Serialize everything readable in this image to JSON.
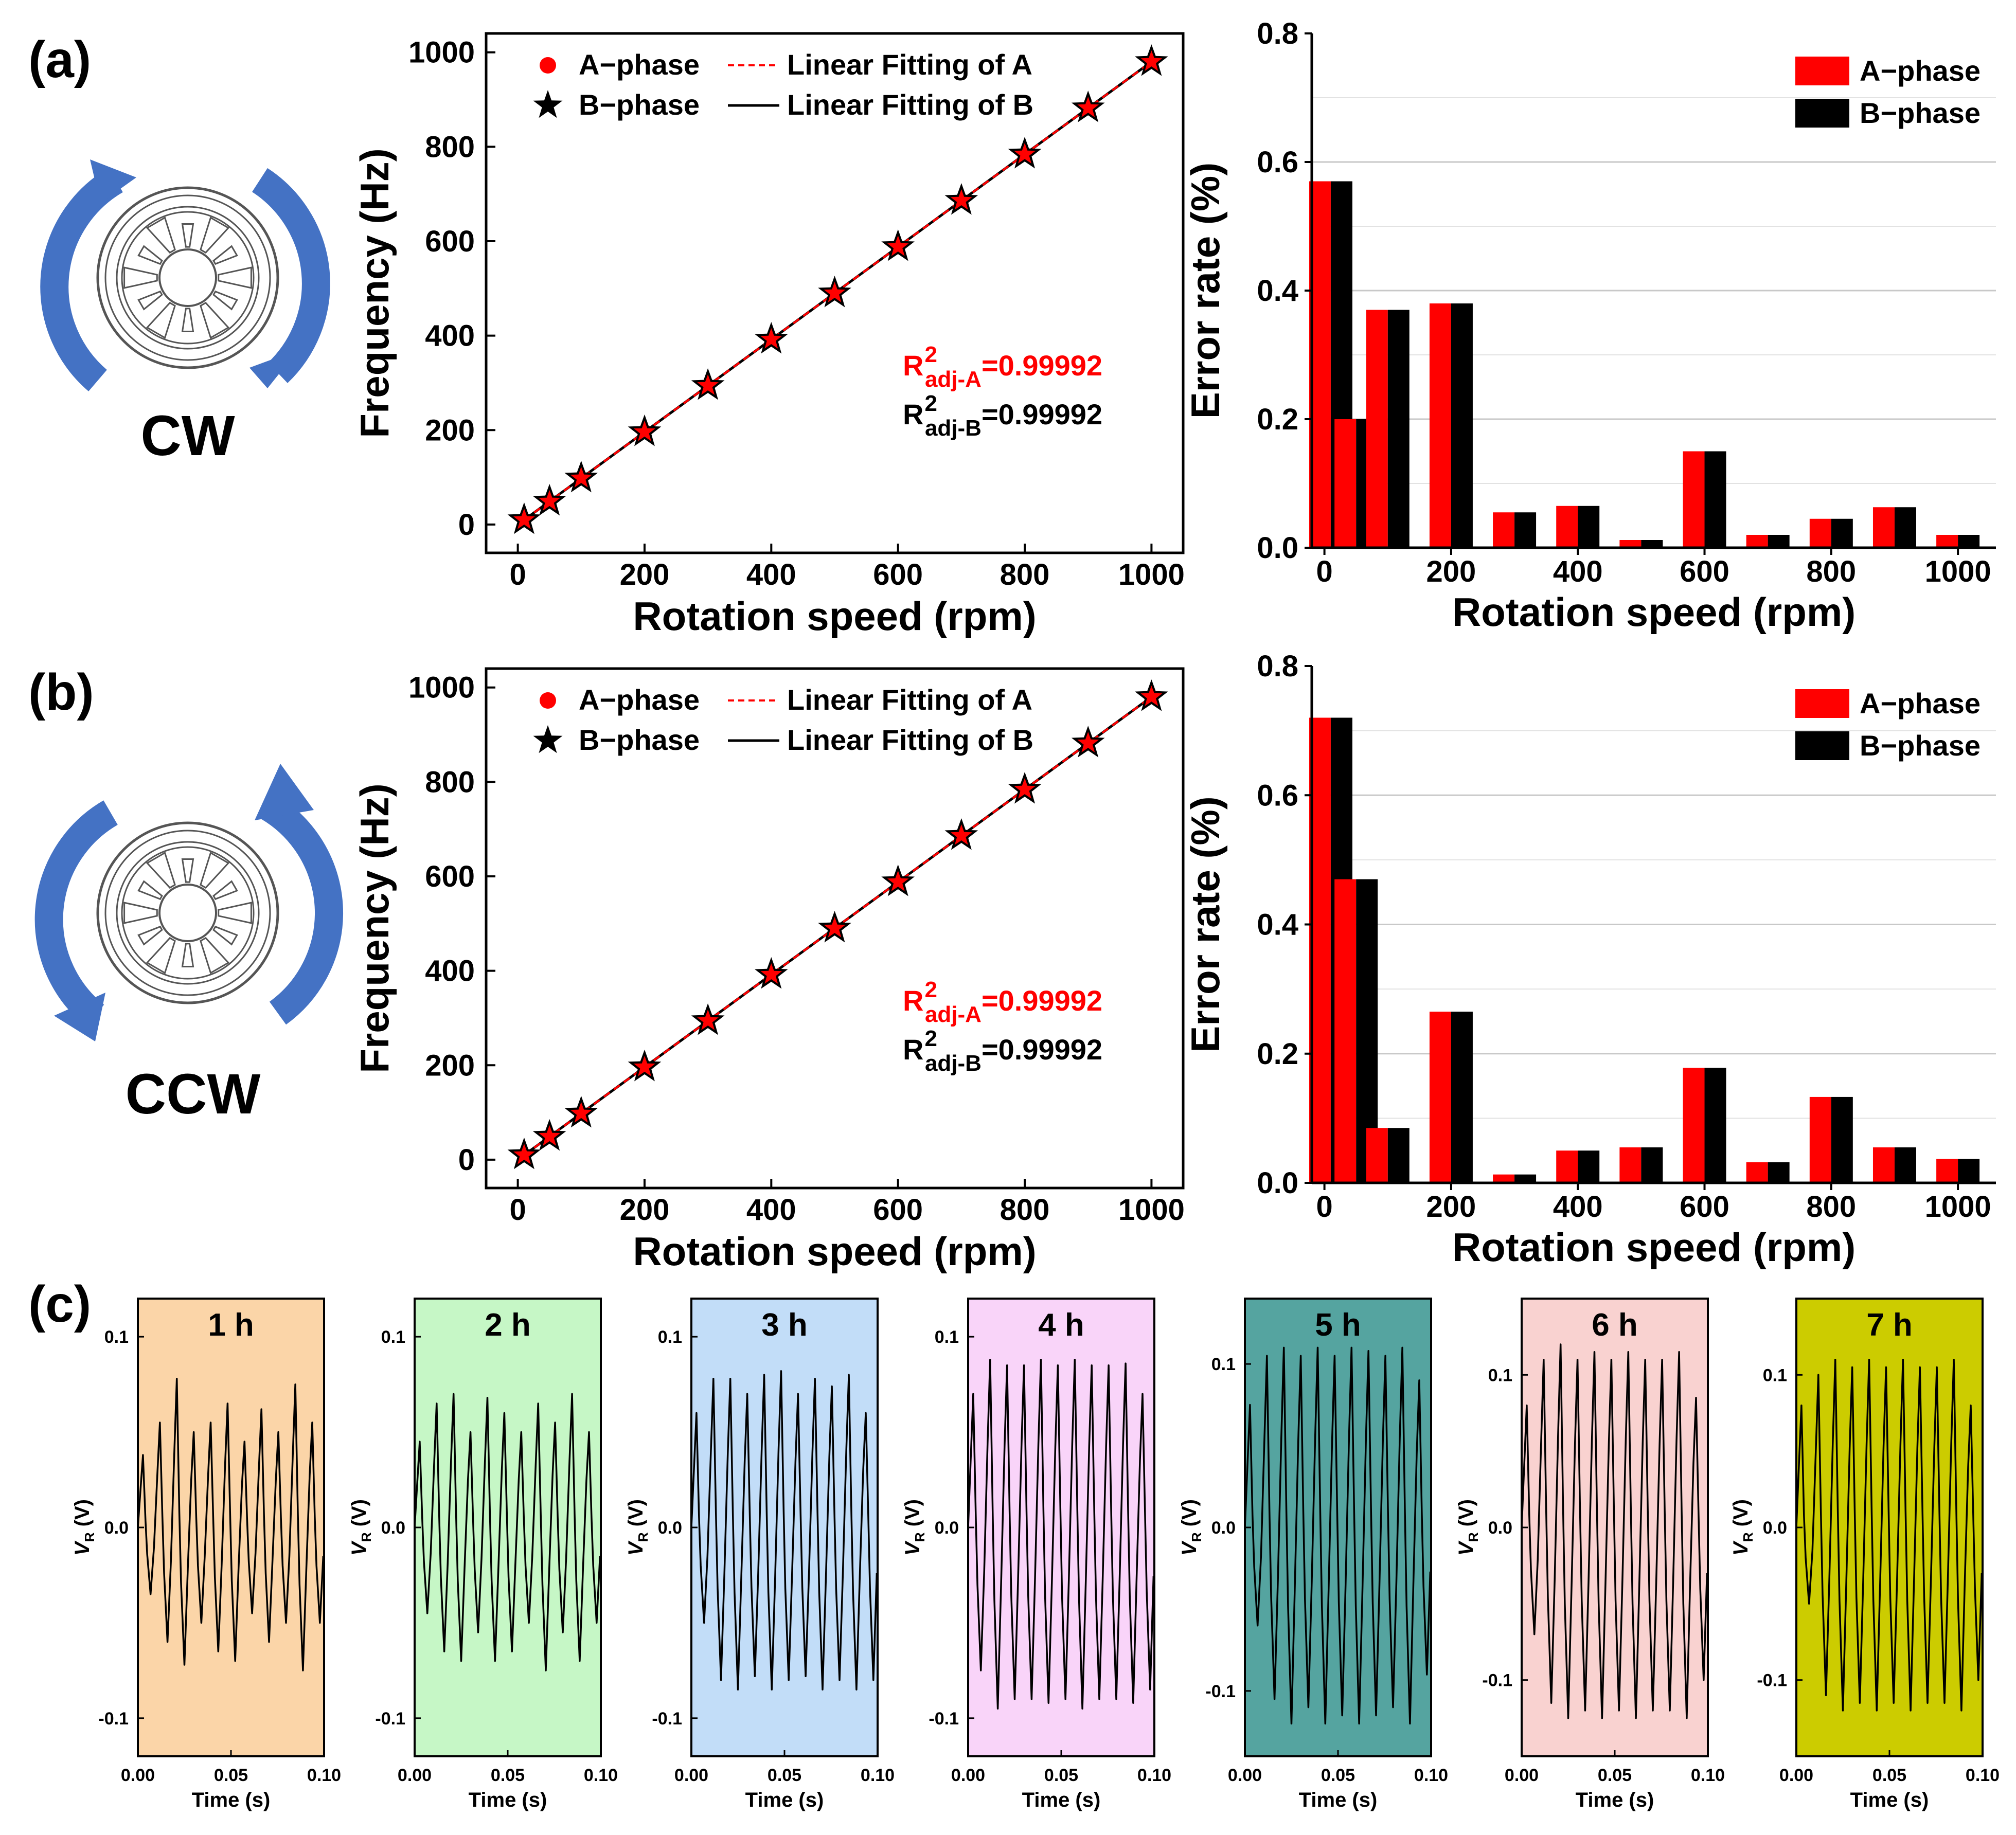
{
  "panels": {
    "a": {
      "label": "(a)",
      "direction": "CW"
    },
    "b": {
      "label": "(b)",
      "direction": "CCW"
    },
    "c": {
      "label": "(c)"
    }
  },
  "colors": {
    "a_phase": "#ff0000",
    "b_phase": "#000000",
    "arrow": "#4472c4",
    "gridline": "#c8c8c8"
  },
  "chart_data": [
    {
      "id": "a-frequency",
      "type": "scatter",
      "xlabel": "Rotation speed (rpm)",
      "ylabel": "Frequency (Hz)",
      "xlim": [
        -50,
        1050
      ],
      "ylim": [
        -60,
        1040
      ],
      "xticks": [
        0,
        200,
        400,
        600,
        800,
        1000
      ],
      "yticks": [
        0,
        200,
        400,
        600,
        800,
        1000
      ],
      "x": [
        10,
        50,
        100,
        200,
        300,
        400,
        500,
        600,
        700,
        800,
        900,
        1000
      ],
      "series": [
        {
          "name": "A−phase",
          "marker": "circle",
          "fit_label": "Linear Fitting of A",
          "fit_style": "dashed",
          "values": [
            9.8,
            49,
            98,
            196,
            294,
            392,
            490,
            588,
            686,
            784,
            882,
            980
          ]
        },
        {
          "name": "B−phase",
          "marker": "star",
          "fit_label": "Linear Fitting of B",
          "fit_style": "solid",
          "values": [
            9.8,
            49,
            98,
            196,
            294,
            392,
            490,
            588,
            686,
            784,
            882,
            980
          ]
        }
      ],
      "annotations": {
        "r2_prefix": "R",
        "r2_sup": "2",
        "a_sub": "adj-A",
        "a_value": "=0.99992",
        "b_sub": "adj-B",
        "b_value": "=0.99992"
      }
    },
    {
      "id": "a-error",
      "type": "bar",
      "xlabel": "Rotation speed (rpm)",
      "ylabel": "Error rate (%)",
      "xlim": [
        -20,
        1060
      ],
      "ylim": [
        0,
        0.8
      ],
      "xticks": [
        0,
        200,
        400,
        600,
        800,
        1000
      ],
      "yticks": [
        0.0,
        0.2,
        0.4,
        0.6,
        0.8
      ],
      "ytick_labels": [
        "0.0",
        "0.2",
        "0.4",
        "0.6",
        "0.8"
      ],
      "grid": true,
      "x": [
        10,
        50,
        100,
        200,
        300,
        400,
        500,
        600,
        700,
        800,
        900,
        1000
      ],
      "series": [
        {
          "name": "A−phase",
          "values": [
            0.57,
            0.2,
            0.37,
            0.38,
            0.055,
            0.065,
            0.012,
            0.15,
            0.02,
            0.045,
            0.063,
            0.02
          ]
        },
        {
          "name": "B−phase",
          "values": [
            0.57,
            0.2,
            0.37,
            0.38,
            0.055,
            0.065,
            0.012,
            0.15,
            0.02,
            0.045,
            0.063,
            0.02
          ]
        }
      ]
    },
    {
      "id": "b-frequency",
      "type": "scatter",
      "xlabel": "Rotation speed (rpm)",
      "ylabel": "Frequency (Hz)",
      "xlim": [
        -50,
        1050
      ],
      "ylim": [
        -60,
        1040
      ],
      "xticks": [
        0,
        200,
        400,
        600,
        800,
        1000
      ],
      "yticks": [
        0,
        200,
        400,
        600,
        800,
        1000
      ],
      "x": [
        10,
        50,
        100,
        200,
        300,
        400,
        500,
        600,
        700,
        800,
        900,
        1000
      ],
      "series": [
        {
          "name": "A−phase",
          "marker": "circle",
          "fit_label": "Linear Fitting of A",
          "fit_style": "dashed",
          "values": [
            9.8,
            49,
            98,
            196,
            294,
            392,
            490,
            588,
            686,
            784,
            882,
            980
          ]
        },
        {
          "name": "B−phase",
          "marker": "star",
          "fit_label": "Linear Fitting of B",
          "fit_style": "solid",
          "values": [
            9.8,
            49,
            98,
            196,
            294,
            392,
            490,
            588,
            686,
            784,
            882,
            980
          ]
        }
      ],
      "annotations": {
        "r2_prefix": "R",
        "r2_sup": "2",
        "a_sub": "adj-A",
        "a_value": "=0.99992",
        "b_sub": "adj-B",
        "b_value": "=0.99992"
      }
    },
    {
      "id": "b-error",
      "type": "bar",
      "xlabel": "Rotation speed (rpm)",
      "ylabel": "Error rate (%)",
      "xlim": [
        -20,
        1060
      ],
      "ylim": [
        0,
        0.8
      ],
      "xticks": [
        0,
        200,
        400,
        600,
        800,
        1000
      ],
      "yticks": [
        0.0,
        0.2,
        0.4,
        0.6,
        0.8
      ],
      "ytick_labels": [
        "0.0",
        "0.2",
        "0.4",
        "0.6",
        "0.8"
      ],
      "grid": true,
      "x": [
        10,
        50,
        100,
        200,
        300,
        400,
        500,
        600,
        700,
        800,
        900,
        1000
      ],
      "series": [
        {
          "name": "A−phase",
          "values": [
            0.72,
            0.47,
            0.085,
            0.265,
            0.013,
            0.05,
            0.055,
            0.178,
            0.032,
            0.133,
            0.055,
            0.037
          ]
        },
        {
          "name": "B−phase",
          "values": [
            0.72,
            0.47,
            0.085,
            0.265,
            0.013,
            0.05,
            0.055,
            0.178,
            0.032,
            0.133,
            0.055,
            0.037
          ]
        }
      ]
    },
    {
      "id": "c-waveforms",
      "type": "line",
      "xlabel": "Time (s)",
      "ylabel_main": "V",
      "ylabel_sub": "R",
      "ylabel_unit": " (V)",
      "xlim": [
        0,
        0.1
      ],
      "xticks": [
        0,
        0.05,
        0.1
      ],
      "xtick_labels": [
        "0.00",
        "0.05",
        "0.10"
      ],
      "yticks": [
        -0.1,
        0.0,
        0.1
      ],
      "ytick_labels": [
        "-0.1",
        "0.0",
        "0.1"
      ],
      "cycles": 11,
      "plots": [
        {
          "label": "1 h",
          "bg": "#fbd5a8",
          "ylim": [
            -0.12,
            0.12
          ],
          "peaks": [
            0.038,
            0.055,
            0.078,
            0.05,
            0.055,
            0.065,
            0.045,
            0.062,
            0.05,
            0.075,
            0.055
          ],
          "troughs": [
            -0.035,
            -0.06,
            -0.072,
            -0.05,
            -0.065,
            -0.07,
            -0.045,
            -0.06,
            -0.05,
            -0.075,
            -0.05
          ]
        },
        {
          "label": "2 h",
          "bg": "#c6f7c6",
          "ylim": [
            -0.12,
            0.12
          ],
          "peaks": [
            0.045,
            0.065,
            0.07,
            0.05,
            0.068,
            0.06,
            0.05,
            0.065,
            0.055,
            0.07,
            0.05
          ],
          "troughs": [
            -0.045,
            -0.065,
            -0.07,
            -0.055,
            -0.07,
            -0.065,
            -0.05,
            -0.075,
            -0.055,
            -0.07,
            -0.05
          ]
        },
        {
          "label": "3 h",
          "bg": "#c2ddf8",
          "ylim": [
            -0.12,
            0.12
          ],
          "peaks": [
            0.06,
            0.078,
            0.078,
            0.07,
            0.08,
            0.082,
            0.07,
            0.078,
            0.074,
            0.08,
            0.06
          ],
          "troughs": [
            -0.05,
            -0.08,
            -0.085,
            -0.078,
            -0.085,
            -0.08,
            -0.078,
            -0.085,
            -0.08,
            -0.085,
            -0.08
          ]
        },
        {
          "label": "4 h",
          "bg": "#f9d4f9",
          "ylim": [
            -0.12,
            0.12
          ],
          "peaks": [
            0.07,
            0.088,
            0.085,
            0.085,
            0.088,
            0.085,
            0.088,
            0.085,
            0.085,
            0.086,
            0.07
          ],
          "troughs": [
            -0.075,
            -0.095,
            -0.09,
            -0.09,
            -0.092,
            -0.09,
            -0.095,
            -0.09,
            -0.09,
            -0.092,
            -0.085
          ]
        },
        {
          "label": "5 h",
          "bg": "#55a4a0",
          "ylim": [
            -0.14,
            0.14
          ],
          "peaks": [
            0.075,
            0.105,
            0.11,
            0.105,
            0.11,
            0.105,
            0.11,
            0.108,
            0.105,
            0.11,
            0.09
          ],
          "troughs": [
            -0.06,
            -0.105,
            -0.12,
            -0.11,
            -0.12,
            -0.115,
            -0.12,
            -0.115,
            -0.11,
            -0.12,
            -0.09
          ]
        },
        {
          "label": "6 h",
          "bg": "#f9d2d0",
          "ylim": [
            -0.15,
            0.15
          ],
          "peaks": [
            0.08,
            0.11,
            0.12,
            0.11,
            0.115,
            0.11,
            0.115,
            0.11,
            0.11,
            0.115,
            0.085
          ],
          "troughs": [
            -0.07,
            -0.115,
            -0.125,
            -0.12,
            -0.125,
            -0.12,
            -0.125,
            -0.12,
            -0.12,
            -0.125,
            -0.1
          ]
        },
        {
          "label": "7 h",
          "bg": "#cccc00",
          "ylim": [
            -0.15,
            0.15
          ],
          "peaks": [
            0.08,
            0.1,
            0.11,
            0.105,
            0.11,
            0.105,
            0.11,
            0.105,
            0.105,
            0.11,
            0.08
          ],
          "troughs": [
            -0.05,
            -0.11,
            -0.12,
            -0.115,
            -0.12,
            -0.115,
            -0.12,
            -0.115,
            -0.115,
            -0.12,
            -0.1
          ]
        }
      ]
    }
  ]
}
